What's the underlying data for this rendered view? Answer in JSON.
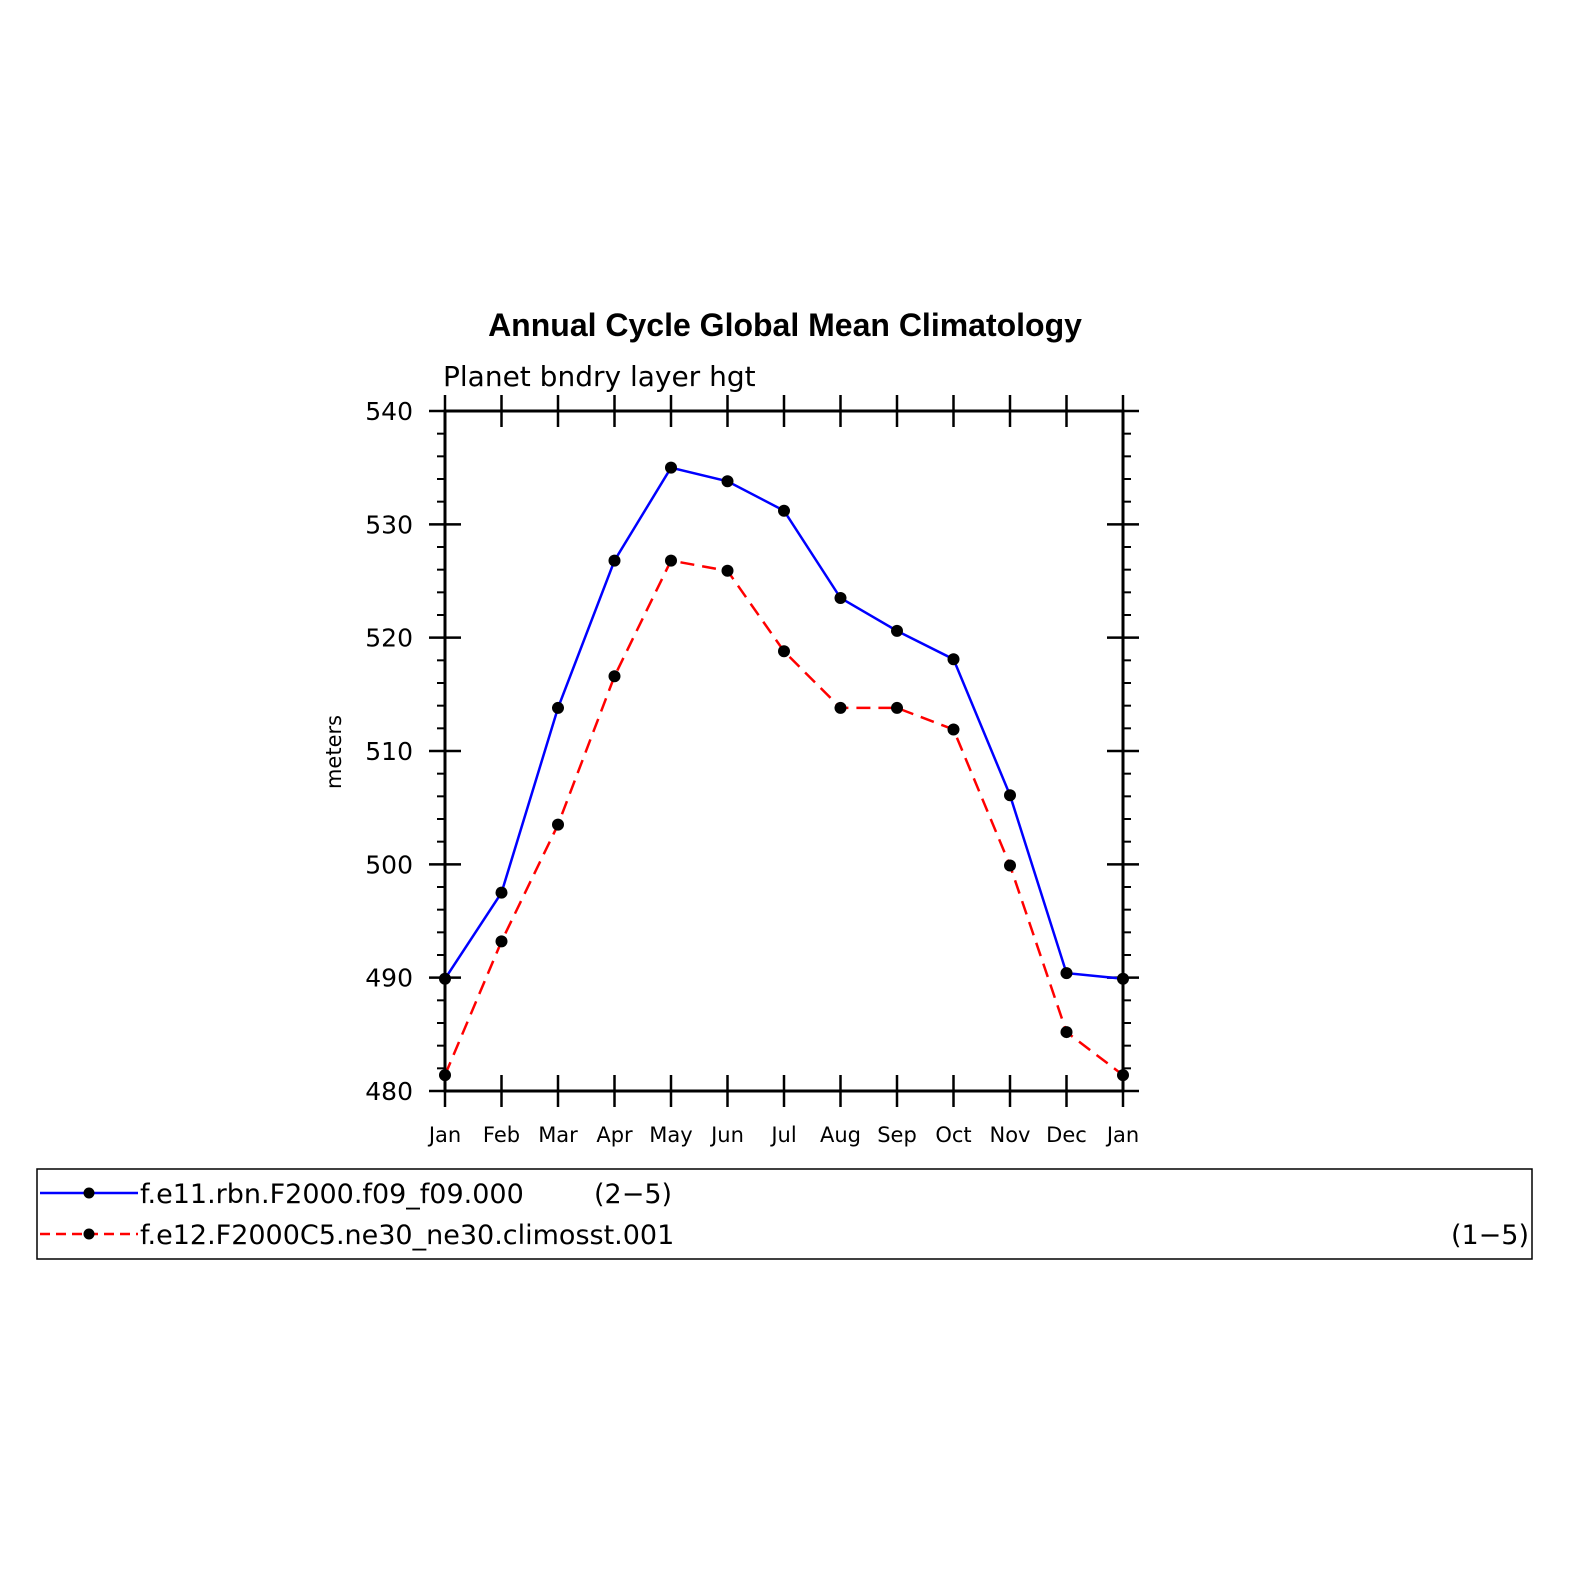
{
  "chart_data": {
    "type": "line",
    "title": "Annual Cycle Global Mean Climatology",
    "subtitle": "Planet bndry layer hgt",
    "xlabel": "",
    "ylabel": "meters",
    "categories": [
      "Jan",
      "Feb",
      "Mar",
      "Apr",
      "May",
      "Jun",
      "Jul",
      "Aug",
      "Sep",
      "Oct",
      "Nov",
      "Dec",
      "Jan"
    ],
    "ylim": [
      480,
      540
    ],
    "yticks": [
      480,
      490,
      500,
      510,
      520,
      530,
      540
    ],
    "grid": false,
    "legend_position": "bottom",
    "series": [
      {
        "name": "f.e11.rbn.F2000.f09_f09.000",
        "suffix": "(2−5)",
        "color": "#0000ff",
        "dashed": false,
        "values": [
          489.9,
          497.5,
          513.8,
          526.8,
          535.0,
          533.8,
          531.2,
          523.5,
          520.6,
          518.1,
          506.1,
          490.4,
          489.9
        ]
      },
      {
        "name": "f.e12.F2000C5.ne30_ne30.climosst.001",
        "suffix": "(1−5)",
        "color": "#ff0000",
        "dashed": true,
        "values": [
          481.4,
          493.2,
          503.5,
          516.6,
          526.8,
          525.9,
          518.8,
          513.8,
          513.8,
          511.9,
          499.9,
          485.2,
          481.4
        ]
      }
    ]
  }
}
